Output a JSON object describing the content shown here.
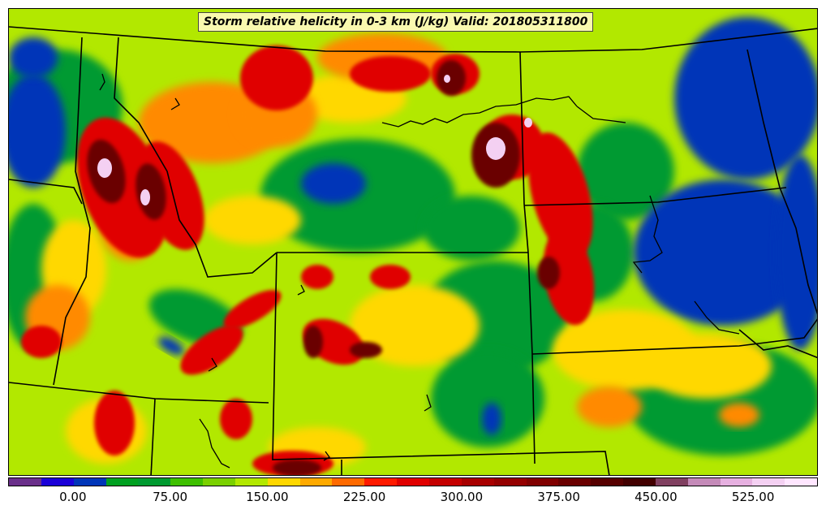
{
  "map": {
    "title": "Storm relative helicity in 0-3 km (J/kg) Valid: 201805311800",
    "field": "storm-relative-helicity-0-3km",
    "units": "J/kg",
    "valid_time": "201805311800",
    "background_level_color": "#b2e800",
    "colorbar": {
      "colors": [
        "#6a2f8a",
        "#1a00d8",
        "#0035b8",
        "#00a020",
        "#009a30",
        "#3ebf00",
        "#7ad000",
        "#b2e800",
        "#ffd800",
        "#ffaa00",
        "#ff6a00",
        "#ff1a00",
        "#e00000",
        "#c40000",
        "#a80000",
        "#940000",
        "#800000",
        "#6a0000",
        "#560000",
        "#420000",
        "#804060",
        "#c48ab8",
        "#e6b0e0",
        "#f4d0f2",
        "#ffe6ff"
      ],
      "tick_labels": [
        "0.00",
        "75.00",
        "150.00",
        "225.00",
        "300.00",
        "375.00",
        "450.00",
        "525.00"
      ],
      "extends": "both"
    },
    "regions": {
      "blue_low_helicity": "#0035b8",
      "green_moderate": "#009a30",
      "yellow_mid": "#ffd800",
      "red_high": "#e00000",
      "maroon_very_high": "#6a0000",
      "pink_extreme": "#f4d0f2"
    },
    "boundaries_color": "#000000"
  }
}
